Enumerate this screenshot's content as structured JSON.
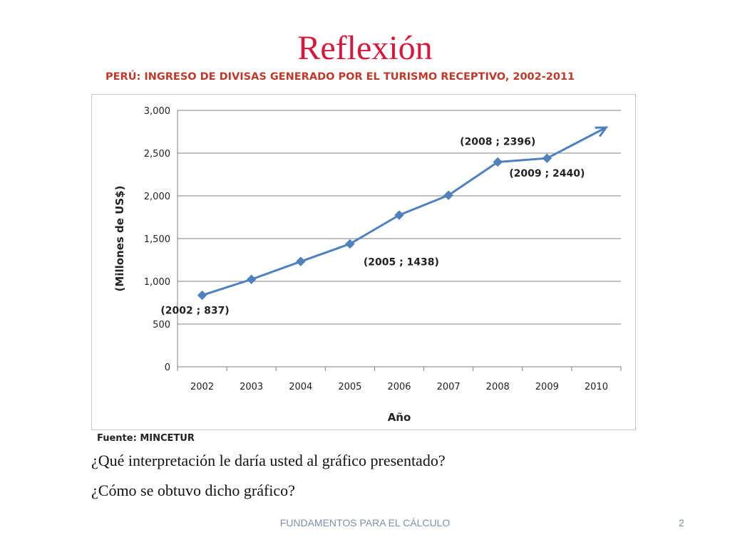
{
  "slide": {
    "title": "Reflexión",
    "questions": [
      "¿Qué interpretación le daría usted al gráfico presentado?",
      "¿Cómo se obtuvo dicho gráfico?"
    ],
    "footer": "FUNDAMENTOS PARA EL CÁLCULO",
    "page_number": "2",
    "source": "Fuente: MINCETUR"
  },
  "colors": {
    "title": "#d8173a",
    "chart_title": "#c0392b",
    "series_line": "#4f81bd",
    "grid": "#7f7f7f",
    "footer": "#7f8fa9"
  },
  "chart_data": {
    "type": "line",
    "title": "PERÚ: INGRESO DE DIVISAS GENERADO POR EL TURISMO RECEPTIVO, 2002-2011",
    "xlabel": "Año",
    "ylabel": "(Millones de US$)",
    "categories": [
      "2002",
      "2003",
      "2004",
      "2005",
      "2006",
      "2007",
      "2008",
      "2009",
      "2010"
    ],
    "series": [
      {
        "name": "",
        "values": [
          837,
          1023,
          1232,
          1438,
          1775,
          2007,
          2396,
          2440,
          null
        ]
      }
    ],
    "trend_arrow": {
      "from": [
        "2009",
        2440
      ],
      "to": [
        "2010",
        2800
      ]
    },
    "yticks": [
      "0",
      "500",
      "1,000",
      "1,500",
      "2,000",
      "2,500",
      "3,000"
    ],
    "ylim": [
      0,
      3000
    ],
    "grid": true,
    "annotations": [
      {
        "text": "(2002 ; 837)",
        "category": "2002",
        "value": 837,
        "position": "below"
      },
      {
        "text": "(2005 ; 1438)",
        "category": "2005",
        "value": 1438,
        "position": "below-right"
      },
      {
        "text": "(2008 ; 2396)",
        "category": "2008",
        "value": 2396,
        "position": "above"
      },
      {
        "text": "(2009 ; 2440)",
        "category": "2009",
        "value": 2440,
        "position": "below"
      }
    ]
  }
}
